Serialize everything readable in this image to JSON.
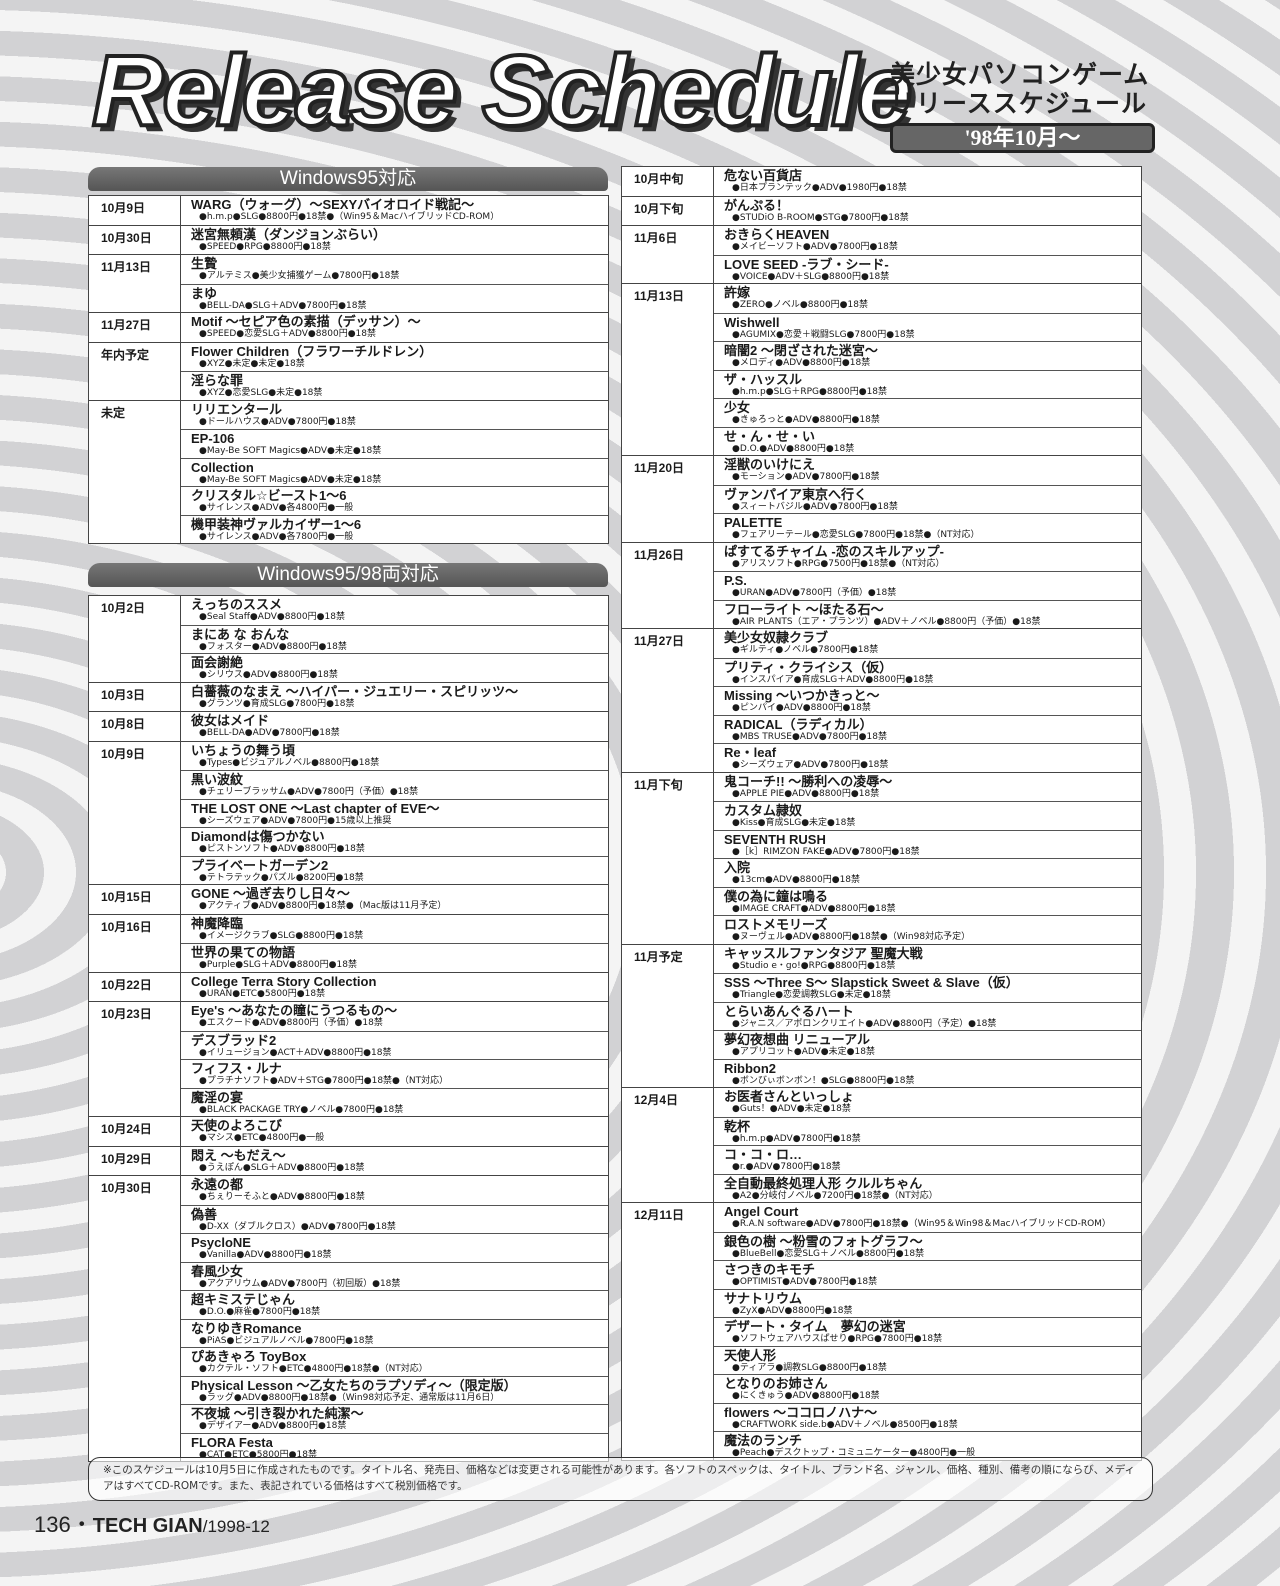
{
  "header": {
    "title": "Release Schedule",
    "subtitle_line1": "美少女パソコンゲーム",
    "subtitle_line2": "リリーススケジュール",
    "since": "'98年10月～"
  },
  "sections": [
    {
      "heading": "Windows95対応",
      "groups": [
        {
          "date": "10月9日",
          "items": [
            {
              "title": "WARG（ウォーグ）～SEXYバイオロイド戦記～",
              "info": "●h.m.p●SLG●8800円●18禁●（Win95＆MacハイブリッドCD-ROM）"
            }
          ]
        },
        {
          "date": "10月30日",
          "items": [
            {
              "title": "迷宮無頼漢（ダンジョンぶらい）",
              "info": "●SPEED●RPG●8800円●18禁"
            }
          ]
        },
        {
          "date": "11月13日",
          "items": [
            {
              "title": "生贄",
              "info": "●アルテミス●美少女捕獲ゲーム●7800円●18禁"
            },
            {
              "title": "まゆ",
              "info": "●BELL-DA●SLG＋ADV●7800円●18禁"
            }
          ]
        },
        {
          "date": "11月27日",
          "items": [
            {
              "title": "Motif ～セピア色の素描（デッサン）～",
              "info": "●SPEED●恋愛SLG＋ADV●8800円●18禁"
            }
          ]
        },
        {
          "date": "年内予定",
          "items": [
            {
              "title": "Flower Children（フラワーチルドレン）",
              "info": "●XYZ●未定●未定●18禁"
            },
            {
              "title": "淫らな罪",
              "info": "●XYZ●恋愛SLG●未定●18禁"
            }
          ]
        },
        {
          "date": "未定",
          "items": [
            {
              "title": "リリエンタール",
              "info": "●ドールハウス●ADV●7800円●18禁"
            },
            {
              "title": "EP-106",
              "info": "●May-Be SOFT Magics●ADV●未定●18禁"
            },
            {
              "title": "Collection",
              "info": "●May-Be SOFT Magics●ADV●未定●18禁"
            },
            {
              "title": "クリスタル☆ビースト1～6",
              "info": "●サイレンス●ADV●各4800円●一般"
            },
            {
              "title": "機甲装神ヴァルカイザー1～6",
              "info": "●サイレンス●ADV●各7800円●一般"
            }
          ]
        }
      ]
    },
    {
      "heading": "Windows95/98両対応",
      "groups": [
        {
          "date": "10月2日",
          "items": [
            {
              "title": "えっちのススメ",
              "info": "●Seal Staff●ADV●8800円●18禁"
            },
            {
              "title": "まにあ な おんな",
              "info": "●フォスター●ADV●8800円●18禁"
            },
            {
              "title": "面会謝絶",
              "info": "●シリウス●ADV●8800円●18禁"
            }
          ]
        },
        {
          "date": "10月3日",
          "items": [
            {
              "title": "白薔薇のなまえ ～ハイパー・ジュエリー・スピリッツ～",
              "info": "●グランツ●育成SLG●7800円●18禁"
            }
          ]
        },
        {
          "date": "10月8日",
          "items": [
            {
              "title": "彼女はメイド",
              "info": "●BELL-DA●ADV●7800円●18禁"
            }
          ]
        },
        {
          "date": "10月9日",
          "items": [
            {
              "title": "いちょうの舞う頃",
              "info": "●Types●ビジュアルノベル●8800円●18禁"
            },
            {
              "title": "黒い波紋",
              "info": "●チェリーブラッサム●ADV●7800円（予価）●18禁"
            },
            {
              "title": "THE LOST ONE ～Last chapter of EVE～",
              "info": "●シーズウェア●ADV●7800円●15歳以上推奨"
            },
            {
              "title": "Diamondは傷つかない",
              "info": "●ピストンソフト●ADV●8800円●18禁"
            },
            {
              "title": "プライベートガーデン2",
              "info": "●テトラテック●パズル●8200円●18禁"
            }
          ]
        },
        {
          "date": "10月15日",
          "items": [
            {
              "title": "GONE ～過ぎ去りし日々～",
              "info": "●アクティブ●ADV●8800円●18禁●（Mac版は11月予定）"
            }
          ]
        },
        {
          "date": "10月16日",
          "items": [
            {
              "title": "神魔降臨",
              "info": "●イメージクラブ●SLG●8800円●18禁"
            },
            {
              "title": "世界の果ての物語",
              "info": "●Purple●SLG＋ADV●8800円●18禁"
            }
          ]
        },
        {
          "date": "10月22日",
          "items": [
            {
              "title": "College Terra Story Collection",
              "info": "●URAN●ETC●5800円●18禁"
            }
          ]
        },
        {
          "date": "10月23日",
          "items": [
            {
              "title": "Eye's ～あなたの瞳にうつるもの～",
              "info": "●エスクード●ADV●8800円（予価）●18禁"
            },
            {
              "title": "デスブラッド2",
              "info": "●イリュージョン●ACT＋ADV●8800円●18禁"
            },
            {
              "title": "フィフス・ルナ",
              "info": "●プラチナソフト●ADV＋STG●7800円●18禁●（NT対応）"
            },
            {
              "title": "魔淫の宴",
              "info": "●BLACK PACKAGE TRY●ノベル●7800円●18禁"
            }
          ]
        },
        {
          "date": "10月24日",
          "items": [
            {
              "title": "天使のよろこび",
              "info": "●マシス●ETC●4800円●一般"
            }
          ]
        },
        {
          "date": "10月29日",
          "items": [
            {
              "title": "悶え ～もだえ～",
              "info": "●うえぽん●SLG＋ADV●8800円●18禁"
            }
          ]
        },
        {
          "date": "10月30日",
          "items": [
            {
              "title": "永遠の都",
              "info": "●ちぇりーそふと●ADV●8800円●18禁"
            },
            {
              "title": "偽善",
              "info": "●D-XX（ダブルクロス）●ADV●7800円●18禁"
            },
            {
              "title": "PsycloNE",
              "info": "●Vanilla●ADV●8800円●18禁"
            },
            {
              "title": "春風少女",
              "info": "●アクアリウム●ADV●7800円（初回版）●18禁"
            },
            {
              "title": "超キミステじゃん",
              "info": "●D.O.●麻雀●7800円●18禁"
            },
            {
              "title": "なりゆきRomance",
              "info": "●PiAS●ビジュアルノベル●7800円●18禁"
            },
            {
              "title": "ぴあきゃろ ToyBox",
              "info": "●カクテル・ソフト●ETC●4800円●18禁●（NT対応）"
            },
            {
              "title": "Physical Lesson ～乙女たちのラプソディ～（限定版）",
              "info": "●ラッグ●ADV●8800円●18禁●（Win98対応予定、通常版は11月6日）"
            },
            {
              "title": "不夜城 ～引き裂かれた純潔～",
              "info": "●デザイアー●ADV●8800円●18禁"
            },
            {
              "title": "FLORA Festa",
              "info": "●CAT●ETC●5800円●18禁"
            }
          ]
        }
      ]
    },
    {
      "heading": "",
      "groups": [
        {
          "date": "10月中旬",
          "items": [
            {
              "title": "危ない百貨店",
              "info": "●日本プランテック●ADV●1980円●18禁"
            }
          ]
        },
        {
          "date": "10月下旬",
          "items": [
            {
              "title": "がんぷる！",
              "info": "●STUDiO B-ROOM●STG●7800円●18禁"
            }
          ]
        },
        {
          "date": "11月6日",
          "items": [
            {
              "title": "おきらくHEAVEN",
              "info": "●メイビーソフト●ADV●7800円●18禁"
            },
            {
              "title": "LOVE SEED -ラブ・シード-",
              "info": "●VOICE●ADV＋SLG●8800円●18禁"
            }
          ]
        },
        {
          "date": "11月13日",
          "items": [
            {
              "title": "許嫁",
              "info": "●ZERO●ノベル●8800円●18禁"
            },
            {
              "title": "Wishwell",
              "info": "●AGUMIX●恋愛＋戦闘SLG●7800円●18禁"
            },
            {
              "title": "暗闇2 ～閉ざされた迷宮～",
              "info": "●メロディ●ADV●8800円●18禁"
            },
            {
              "title": "ザ・ハッスル",
              "info": "●h.m.p●SLG＋RPG●8800円●18禁"
            },
            {
              "title": "少女",
              "info": "●きゅろっと●ADV●8800円●18禁"
            },
            {
              "title": "せ・ん・せ・い",
              "info": "●D.O.●ADV●8800円●18禁"
            }
          ]
        },
        {
          "date": "11月20日",
          "items": [
            {
              "title": "淫獣のいけにえ",
              "info": "●モーション●ADV●7800円●18禁"
            },
            {
              "title": "ヴァンパイア東京へ行く",
              "info": "●スィートバジル●ADV●7800円●18禁"
            },
            {
              "title": "PALETTE",
              "info": "●フェアリーテール●恋愛SLG●7800円●18禁●（NT対応）"
            }
          ]
        },
        {
          "date": "11月26日",
          "items": [
            {
              "title": "ぱすてるチャイム -恋のスキルアップ-",
              "info": "●アリスソフト●RPG●7500円●18禁●（NT対応）"
            },
            {
              "title": "P.S.",
              "info": "●URAN●ADV●7800円（予価）●18禁"
            },
            {
              "title": "フローライト ～ほたる石～",
              "info": "●AIR PLANTS（エア・プランツ）●ADV＋ノベル●8800円（予価）●18禁"
            }
          ]
        },
        {
          "date": "11月27日",
          "items": [
            {
              "title": "美少女奴隷クラブ",
              "info": "●ギルティ●ノベル●7800円●18禁"
            },
            {
              "title": "プリティ・クライシス（仮）",
              "info": "●インスパイア●育成SLG＋ADV●8800円●18禁"
            },
            {
              "title": "Missing ～いつかきっと～",
              "info": "●ピンパイ●ADV●8800円●18禁"
            },
            {
              "title": "RADICAL（ラディカル）",
              "info": "●MBS TRUSE●ADV●7800円●18禁"
            },
            {
              "title": "Re・leaf",
              "info": "●シーズウェア●ADV●7800円●18禁"
            }
          ]
        },
        {
          "date": "11月下旬",
          "items": [
            {
              "title": "鬼コーチ!! ～勝利への凌辱～",
              "info": "●APPLE PIE●ADV●8800円●18禁"
            },
            {
              "title": "カスタム隷奴",
              "info": "●Kiss●育成SLG●未定●18禁"
            },
            {
              "title": "SEVENTH RUSH",
              "info": "●［k］RIMZON FAKE●ADV●7800円●18禁"
            },
            {
              "title": "入院",
              "info": "●13cm●ADV●8800円●18禁"
            },
            {
              "title": "僕の為に鐘は鳴る",
              "info": "●IMAGE CRAFT●ADV●8800円●18禁"
            },
            {
              "title": "ロストメモリーズ",
              "info": "●ヌーヴェル●ADV●8800円●18禁●（Win98対応予定）"
            }
          ]
        },
        {
          "date": "11月予定",
          "items": [
            {
              "title": "キャッスルファンタジア 聖魔大戦",
              "info": "●Studio e・go!●RPG●8800円●18禁"
            },
            {
              "title": "SSS ～Three S～ Slapstick Sweet & Slave（仮）",
              "info": "●Triangle●恋愛調教SLG●未定●18禁"
            },
            {
              "title": "とらいあんぐるハート",
              "info": "●ジャニス／アポロンクリエイト●ADV●8800円（予定）●18禁"
            },
            {
              "title": "夢幻夜想曲 リニューアル",
              "info": "●アプリコット●ADV●未定●18禁"
            },
            {
              "title": "Ribbon2",
              "info": "●ボンびぃボンボン！●SLG●8800円●18禁"
            }
          ]
        },
        {
          "date": "12月4日",
          "items": [
            {
              "title": "お医者さんといっしょ",
              "info": "●Guts！●ADV●未定●18禁"
            },
            {
              "title": "乾杯",
              "info": "●h.m.p●ADV●7800円●18禁"
            },
            {
              "title": "コ・コ・ロ…",
              "info": "●r.●ADV●7800円●18禁"
            },
            {
              "title": "全自動最終処理人形 クルルちゃん",
              "info": "●A2●分岐付ノベル●7200円●18禁●（NT対応）"
            }
          ]
        },
        {
          "date": "12月11日",
          "items": [
            {
              "title": "Angel Court",
              "info": "●R.A.N software●ADV●7800円●18禁●（Win95＆Win98＆MacハイブリッドCD-ROM）"
            },
            {
              "title": "銀色の樹 ～粉雪のフォトグラフ～",
              "info": "●BlueBell●恋愛SLG＋ノベル●8800円●18禁"
            },
            {
              "title": "さつきのキモチ",
              "info": "●OPTIMIST●ADV●7800円●18禁"
            },
            {
              "title": "サナトリウム",
              "info": "●ZyX●ADV●8800円●18禁"
            },
            {
              "title": "デザート・タイム　夢幻の迷宮",
              "info": "●ソフトウェアハウスぱせり●RPG●7800円●18禁"
            },
            {
              "title": "天使人形",
              "info": "●ティアラ●調教SLG●8800円●18禁"
            },
            {
              "title": "となりのお姉さん",
              "info": "●にくきゅう●ADV●8800円●18禁"
            },
            {
              "title": "flowers ～ココロノハナ～",
              "info": "●CRAFTWORK side.b●ADV＋ノベル●8500円●18禁"
            },
            {
              "title": "魔法のランチ",
              "info": "●Peach●デスクトップ・コミュニケーター●4800円●一般"
            }
          ]
        }
      ]
    }
  ],
  "footnote": "※このスケジュールは10月5日に作成されたものです。タイトル名、発売日、価格などは変更される可能性があります。各ソフトのスペックは、タイトル、ブランド名、ジャンル、価格、種別、備考の順にならび、メディアはすべてCD-ROMです。また、表記されている価格はすべて税別価格です。",
  "folio": {
    "page": "136",
    "separator": "・",
    "magazine": "TECH GIAN",
    "issue": "/1998-12"
  }
}
